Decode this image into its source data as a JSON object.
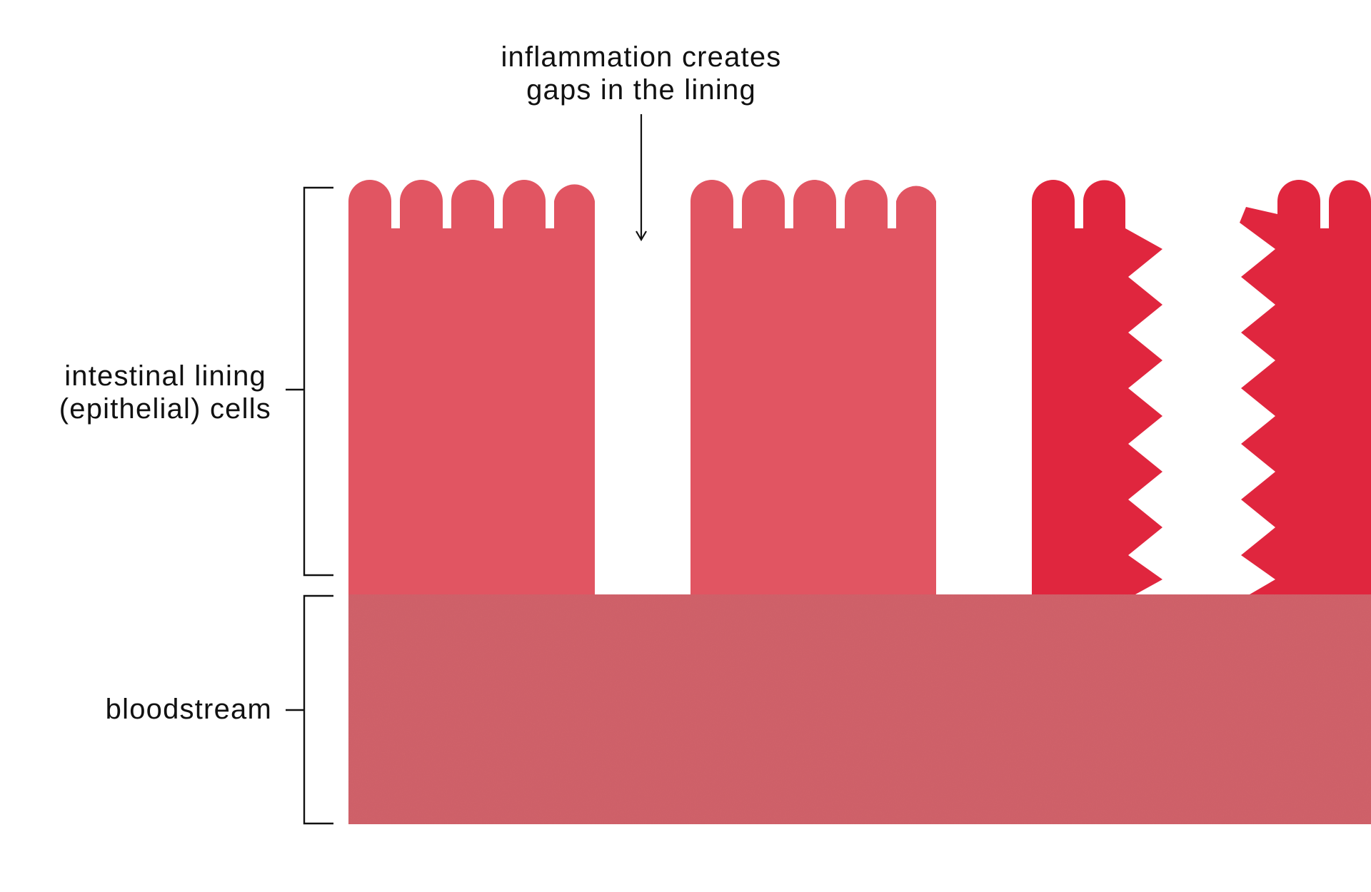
{
  "diagram": {
    "annotation": {
      "line1": "inflammation creates",
      "line2": "gaps in the lining"
    },
    "labels": {
      "epithelial_line1": "intestinal lining",
      "epithelial_line2": "(epithelial) cells",
      "bloodstream": "bloodstream"
    },
    "colors": {
      "healthy_cell": "#e15562",
      "inflamed_cell": "#e0263e",
      "bloodstream": "#d1626a",
      "text": "#111111",
      "background": "#ffffff"
    }
  }
}
